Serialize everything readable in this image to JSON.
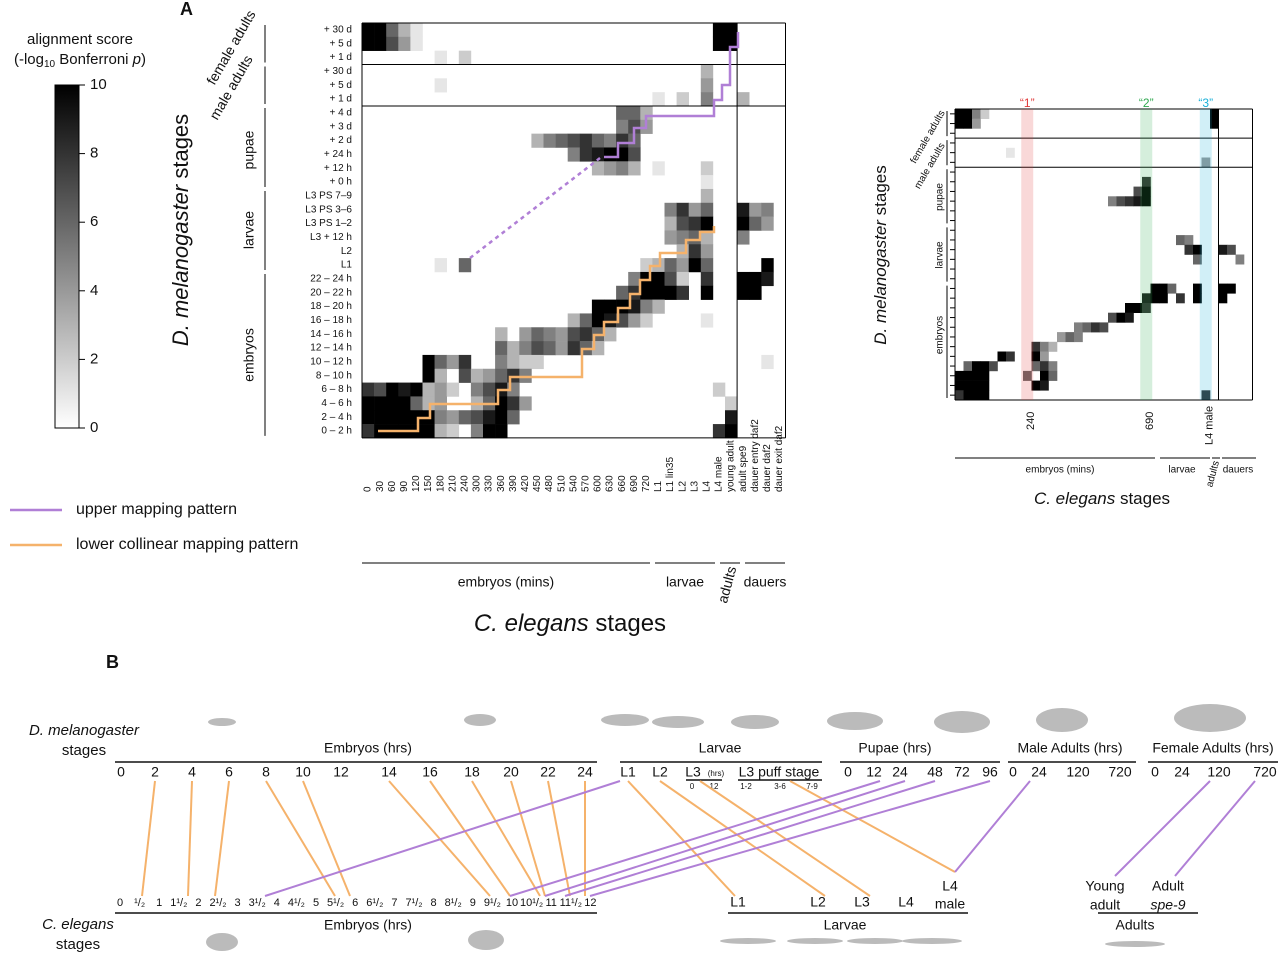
{
  "panel_a": {
    "label": "A",
    "colorbar": {
      "title": "alignment score",
      "sub_open": "(-log",
      "sub_base": "10",
      "sub_mid": " Bonferroni ",
      "sub_p": "p",
      "sub_close": ")",
      "lim": [
        0,
        10
      ],
      "ticks": [
        0,
        2,
        4,
        6,
        8,
        10
      ]
    },
    "y_title": {
      "italic": "D. melanogaster",
      "rest": " stages"
    },
    "x_title": {
      "italic": "C. elegans",
      "rest": " stages"
    },
    "row_labels": [
      "+ 30 d",
      "+ 5 d",
      "+ 1 d",
      "+ 30 d",
      "+ 5 d",
      "+ 1 d",
      "+ 4 d",
      "+ 3 d",
      "+ 2 d",
      "+ 24 h",
      "+ 12 h",
      "+ 0 h",
      "L3 PS 7–9",
      "L3 PS 3–6",
      "L3 PS 1–2",
      "L3 + 12 h",
      "L2",
      "L1",
      "22 – 24 h",
      "20 – 22 h",
      "18 – 20 h",
      "16 – 18 h",
      "14 – 16 h",
      "12 – 14 h",
      "10 – 12 h",
      "8 – 10 h",
      "6 – 8 h",
      "4 – 6 h",
      "2 – 4 h",
      "0 – 2 h"
    ],
    "row_groups": [
      "female adults",
      "male adults",
      "pupae",
      "larvae",
      "embryos"
    ],
    "col_labels": [
      0,
      30,
      60,
      90,
      120,
      150,
      180,
      210,
      240,
      300,
      330,
      360,
      390,
      420,
      450,
      480,
      510,
      540,
      570,
      600,
      630,
      660,
      690,
      720,
      "L1",
      "L1 lin35",
      "L2",
      "L3",
      "L4",
      "L4 male",
      "young adult",
      "adult spe9",
      "dauer entry daf2",
      "dauer daf2",
      "dauer exit daf2"
    ],
    "col_groups": [
      "embryos (mins)",
      "larvae",
      "adults",
      "dauers"
    ],
    "legend": [
      {
        "name": "upper mapping pattern",
        "color": "#b07fd6"
      },
      {
        "name": "lower collinear mapping pattern",
        "color": "#f5b26b"
      }
    ],
    "cells": [
      [
        0,
        0,
        10
      ],
      [
        0,
        1,
        10
      ],
      [
        0,
        2,
        6
      ],
      [
        0,
        3,
        3
      ],
      [
        0,
        4,
        1
      ],
      [
        0,
        29,
        10
      ],
      [
        0,
        30,
        10
      ],
      [
        1,
        0,
        10
      ],
      [
        1,
        1,
        10
      ],
      [
        1,
        2,
        7
      ],
      [
        1,
        3,
        4
      ],
      [
        1,
        4,
        1
      ],
      [
        1,
        29,
        10
      ],
      [
        1,
        30,
        10
      ],
      [
        2,
        6,
        1
      ],
      [
        2,
        8,
        2
      ],
      [
        3,
        28,
        3
      ],
      [
        4,
        6,
        1
      ],
      [
        4,
        28,
        4
      ],
      [
        5,
        24,
        1
      ],
      [
        5,
        26,
        2
      ],
      [
        5,
        28,
        5
      ],
      [
        5,
        31,
        3
      ],
      [
        6,
        21,
        6
      ],
      [
        6,
        22,
        6
      ],
      [
        6,
        23,
        3
      ],
      [
        7,
        21,
        5
      ],
      [
        7,
        22,
        7
      ],
      [
        7,
        23,
        4
      ],
      [
        8,
        14,
        3
      ],
      [
        8,
        15,
        5
      ],
      [
        8,
        16,
        6
      ],
      [
        8,
        17,
        7
      ],
      [
        8,
        18,
        8
      ],
      [
        8,
        19,
        6
      ],
      [
        8,
        20,
        5
      ],
      [
        8,
        21,
        8
      ],
      [
        8,
        22,
        6
      ],
      [
        9,
        17,
        5
      ],
      [
        9,
        18,
        8
      ],
      [
        9,
        19,
        9
      ],
      [
        9,
        20,
        10
      ],
      [
        9,
        21,
        10
      ],
      [
        9,
        22,
        7
      ],
      [
        10,
        19,
        3
      ],
      [
        10,
        20,
        4
      ],
      [
        10,
        21,
        5
      ],
      [
        10,
        22,
        3
      ],
      [
        10,
        24,
        1
      ],
      [
        10,
        28,
        2
      ],
      [
        11,
        28,
        1
      ],
      [
        12,
        28,
        3
      ],
      [
        13,
        25,
        5
      ],
      [
        13,
        26,
        8
      ],
      [
        13,
        27,
        4
      ],
      [
        13,
        28,
        6
      ],
      [
        13,
        31,
        9
      ],
      [
        13,
        32,
        4
      ],
      [
        13,
        33,
        5
      ],
      [
        14,
        25,
        3
      ],
      [
        14,
        26,
        7
      ],
      [
        14,
        27,
        8
      ],
      [
        14,
        28,
        10
      ],
      [
        14,
        31,
        10
      ],
      [
        14,
        32,
        6
      ],
      [
        14,
        33,
        4
      ],
      [
        15,
        25,
        4
      ],
      [
        15,
        26,
        5
      ],
      [
        15,
        27,
        6
      ],
      [
        15,
        28,
        3
      ],
      [
        15,
        31,
        5
      ],
      [
        16,
        26,
        3
      ],
      [
        16,
        27,
        8
      ],
      [
        16,
        28,
        4
      ],
      [
        17,
        6,
        1
      ],
      [
        17,
        8,
        6
      ],
      [
        17,
        23,
        2
      ],
      [
        17,
        24,
        3
      ],
      [
        17,
        25,
        6
      ],
      [
        17,
        26,
        4
      ],
      [
        17,
        27,
        10
      ],
      [
        17,
        28,
        6
      ],
      [
        17,
        33,
        10
      ],
      [
        18,
        22,
        5
      ],
      [
        18,
        23,
        10
      ],
      [
        18,
        24,
        10
      ],
      [
        18,
        25,
        7
      ],
      [
        18,
        26,
        2
      ],
      [
        18,
        28,
        8
      ],
      [
        18,
        31,
        10
      ],
      [
        18,
        32,
        10
      ],
      [
        18,
        33,
        9
      ],
      [
        19,
        21,
        6
      ],
      [
        19,
        22,
        8
      ],
      [
        19,
        23,
        10
      ],
      [
        19,
        24,
        10
      ],
      [
        19,
        25,
        10
      ],
      [
        19,
        26,
        8
      ],
      [
        19,
        28,
        10
      ],
      [
        19,
        31,
        10
      ],
      [
        19,
        32,
        10
      ],
      [
        20,
        19,
        10
      ],
      [
        20,
        20,
        10
      ],
      [
        20,
        21,
        10
      ],
      [
        20,
        22,
        9
      ],
      [
        20,
        23,
        5
      ],
      [
        20,
        24,
        3
      ],
      [
        21,
        17,
        3
      ],
      [
        21,
        18,
        6
      ],
      [
        21,
        19,
        10
      ],
      [
        21,
        20,
        9
      ],
      [
        21,
        21,
        7
      ],
      [
        21,
        22,
        4
      ],
      [
        21,
        23,
        2
      ],
      [
        21,
        28,
        1
      ],
      [
        22,
        11,
        3
      ],
      [
        22,
        13,
        4
      ],
      [
        22,
        14,
        6
      ],
      [
        22,
        15,
        5
      ],
      [
        22,
        16,
        4
      ],
      [
        22,
        17,
        7
      ],
      [
        22,
        18,
        8
      ],
      [
        22,
        19,
        6
      ],
      [
        22,
        20,
        3
      ],
      [
        23,
        11,
        6
      ],
      [
        23,
        12,
        3
      ],
      [
        23,
        13,
        5
      ],
      [
        23,
        14,
        7
      ],
      [
        23,
        15,
        6
      ],
      [
        23,
        16,
        4
      ],
      [
        23,
        17,
        8
      ],
      [
        23,
        18,
        6
      ],
      [
        23,
        19,
        3
      ],
      [
        24,
        5,
        10
      ],
      [
        24,
        6,
        6
      ],
      [
        24,
        7,
        4
      ],
      [
        24,
        8,
        8
      ],
      [
        24,
        11,
        5
      ],
      [
        24,
        12,
        3
      ],
      [
        24,
        13,
        2
      ],
      [
        24,
        14,
        2
      ],
      [
        24,
        33,
        1
      ],
      [
        25,
        5,
        10
      ],
      [
        25,
        6,
        3
      ],
      [
        25,
        8,
        7
      ],
      [
        25,
        9,
        3
      ],
      [
        25,
        10,
        4
      ],
      [
        25,
        11,
        6
      ],
      [
        25,
        12,
        8
      ],
      [
        25,
        13,
        5
      ],
      [
        26,
        0,
        8
      ],
      [
        26,
        1,
        7
      ],
      [
        26,
        2,
        10
      ],
      [
        26,
        3,
        9
      ],
      [
        26,
        4,
        10
      ],
      [
        26,
        5,
        3
      ],
      [
        26,
        6,
        4
      ],
      [
        26,
        7,
        2
      ],
      [
        26,
        9,
        5
      ],
      [
        26,
        10,
        7
      ],
      [
        26,
        11,
        9
      ],
      [
        26,
        12,
        5
      ],
      [
        26,
        29,
        2
      ],
      [
        27,
        0,
        10
      ],
      [
        27,
        1,
        10
      ],
      [
        27,
        2,
        10
      ],
      [
        27,
        3,
        10
      ],
      [
        27,
        4,
        6
      ],
      [
        27,
        5,
        3
      ],
      [
        27,
        6,
        4
      ],
      [
        27,
        9,
        3
      ],
      [
        27,
        10,
        6
      ],
      [
        27,
        11,
        10
      ],
      [
        27,
        12,
        8
      ],
      [
        27,
        13,
        4
      ],
      [
        27,
        30,
        2
      ],
      [
        28,
        0,
        10
      ],
      [
        28,
        1,
        10
      ],
      [
        28,
        2,
        10
      ],
      [
        28,
        3,
        10
      ],
      [
        28,
        4,
        10
      ],
      [
        28,
        5,
        10
      ],
      [
        28,
        6,
        5
      ],
      [
        28,
        7,
        4
      ],
      [
        28,
        8,
        6
      ],
      [
        28,
        9,
        7
      ],
      [
        28,
        10,
        9
      ],
      [
        28,
        11,
        10
      ],
      [
        28,
        12,
        6
      ],
      [
        28,
        30,
        9
      ],
      [
        29,
        0,
        8
      ],
      [
        29,
        1,
        10
      ],
      [
        29,
        2,
        10
      ],
      [
        29,
        3,
        10
      ],
      [
        29,
        4,
        10
      ],
      [
        29,
        5,
        10
      ],
      [
        29,
        6,
        3
      ],
      [
        29,
        7,
        2
      ],
      [
        29,
        9,
        5
      ],
      [
        29,
        10,
        10
      ],
      [
        29,
        11,
        10
      ],
      [
        29,
        29,
        8
      ],
      [
        29,
        30,
        10
      ]
    ]
  },
  "inset": {
    "y_title": {
      "italic": "D. melanogaster",
      "rest": " stages"
    },
    "x_title": {
      "italic": "C. elegans",
      "rest": " stages"
    },
    "row_groups": [
      "female adults",
      "male adults",
      "pupae",
      "larvae",
      "embryos"
    ],
    "annotations": [
      {
        "text": "“1”",
        "color": "#e03a3a"
      },
      {
        "text": "“2”",
        "color": "#2fa84f"
      },
      {
        "text": "“3”",
        "color": "#1ab0d8"
      }
    ],
    "x_ticks": [
      240,
      690,
      "L4 male"
    ],
    "col_groups": [
      "embryos (mins)",
      "larvae",
      "adults",
      "dauers"
    ],
    "cells": [
      [
        0,
        0,
        10
      ],
      [
        0,
        1,
        10
      ],
      [
        0,
        2,
        5
      ],
      [
        0,
        3,
        2
      ],
      [
        0,
        30,
        10
      ],
      [
        1,
        0,
        10
      ],
      [
        1,
        1,
        10
      ],
      [
        1,
        2,
        4
      ],
      [
        1,
        30,
        10
      ],
      [
        4,
        6,
        1
      ],
      [
        5,
        29,
        4
      ],
      [
        7,
        22,
        8
      ],
      [
        8,
        21,
        7
      ],
      [
        8,
        22,
        10
      ],
      [
        9,
        18,
        5
      ],
      [
        9,
        19,
        7
      ],
      [
        9,
        20,
        8
      ],
      [
        9,
        21,
        9
      ],
      [
        9,
        22,
        10
      ],
      [
        13,
        26,
        6
      ],
      [
        13,
        27,
        5
      ],
      [
        14,
        27,
        8
      ],
      [
        14,
        28,
        10
      ],
      [
        14,
        31,
        9
      ],
      [
        14,
        32,
        7
      ],
      [
        15,
        33,
        5
      ],
      [
        15,
        28,
        6
      ],
      [
        18,
        23,
        10
      ],
      [
        18,
        24,
        10
      ],
      [
        18,
        25,
        6
      ],
      [
        18,
        28,
        10
      ],
      [
        18,
        31,
        10
      ],
      [
        18,
        32,
        10
      ],
      [
        19,
        22,
        9
      ],
      [
        19,
        23,
        10
      ],
      [
        19,
        24,
        10
      ],
      [
        19,
        26,
        8
      ],
      [
        19,
        28,
        10
      ],
      [
        19,
        31,
        10
      ],
      [
        20,
        20,
        10
      ],
      [
        20,
        21,
        10
      ],
      [
        20,
        22,
        8
      ],
      [
        21,
        18,
        7
      ],
      [
        21,
        19,
        10
      ],
      [
        21,
        20,
        9
      ],
      [
        22,
        14,
        5
      ],
      [
        22,
        15,
        6
      ],
      [
        22,
        16,
        8
      ],
      [
        22,
        17,
        7
      ],
      [
        23,
        12,
        4
      ],
      [
        23,
        13,
        6
      ],
      [
        23,
        14,
        5
      ],
      [
        24,
        9,
        8
      ],
      [
        24,
        10,
        5
      ],
      [
        24,
        11,
        3
      ],
      [
        25,
        5,
        10
      ],
      [
        25,
        6,
        8
      ],
      [
        25,
        9,
        10
      ],
      [
        25,
        10,
        4
      ],
      [
        26,
        1,
        6
      ],
      [
        26,
        2,
        10
      ],
      [
        26,
        3,
        10
      ],
      [
        26,
        4,
        7
      ],
      [
        26,
        9,
        6
      ],
      [
        26,
        10,
        8
      ],
      [
        26,
        11,
        5
      ],
      [
        27,
        0,
        10
      ],
      [
        27,
        1,
        10
      ],
      [
        27,
        2,
        10
      ],
      [
        27,
        3,
        10
      ],
      [
        27,
        8,
        6
      ],
      [
        27,
        10,
        10
      ],
      [
        27,
        11,
        6
      ],
      [
        28,
        0,
        10
      ],
      [
        28,
        1,
        10
      ],
      [
        28,
        2,
        10
      ],
      [
        28,
        3,
        10
      ],
      [
        28,
        9,
        10
      ],
      [
        28,
        10,
        9
      ],
      [
        29,
        0,
        8
      ],
      [
        29,
        1,
        10
      ],
      [
        29,
        2,
        10
      ],
      [
        29,
        3,
        10
      ],
      [
        29,
        29,
        8
      ]
    ]
  },
  "panel_b": {
    "label": "B",
    "dm_title": {
      "italic": "D. melanogaster",
      "rest": "stages"
    },
    "ce_title": {
      "italic": "C. elegans",
      "rest": "stages"
    },
    "dm_groups": [
      "Embryos (hrs)",
      "Larvae",
      "Pupae (hrs)",
      "Male Adults (hrs)",
      "Female Adults (hrs)"
    ],
    "dm_embryo_ticks": [
      0,
      2,
      4,
      6,
      8,
      10,
      12,
      14,
      16,
      18,
      20,
      22,
      24
    ],
    "dm_larva_ticks": [
      "L1",
      "L2",
      "L3",
      "L3 puff stage"
    ],
    "dm_l3_unit": "(hrs)",
    "dm_l3_sub": [
      0,
      12
    ],
    "dm_puff_sub": [
      "1-2",
      "3-6",
      "7-9"
    ],
    "dm_pupa_ticks": [
      0,
      12,
      24,
      48,
      72,
      96
    ],
    "dm_male_ticks": [
      0,
      24,
      120,
      720
    ],
    "dm_female_ticks": [
      0,
      24,
      120,
      720
    ],
    "ce_groups": [
      "Embryos (hrs)",
      "Larvae",
      "Adults"
    ],
    "ce_embryo_ticks": [
      "0",
      "¹/₂",
      "1",
      "1¹/₂",
      "2",
      "2¹/₂",
      "3",
      "3¹/₂",
      "4",
      "4¹/₂",
      "5",
      "5¹/₂",
      "6",
      "6¹/₂",
      "7",
      "7¹/₂",
      "8",
      "8¹/₂",
      "9",
      "9¹/₂",
      "10",
      "10¹/₂",
      "11",
      "11¹/₂",
      "12"
    ],
    "ce_larva_ticks": [
      "L1",
      "L2",
      "L3",
      "L4"
    ],
    "ce_l4_male": [
      "L4",
      "male"
    ],
    "ce_young_adult": [
      "Young",
      "adult"
    ],
    "ce_adult_spe9": [
      "Adult",
      "spe-9"
    ]
  }
}
